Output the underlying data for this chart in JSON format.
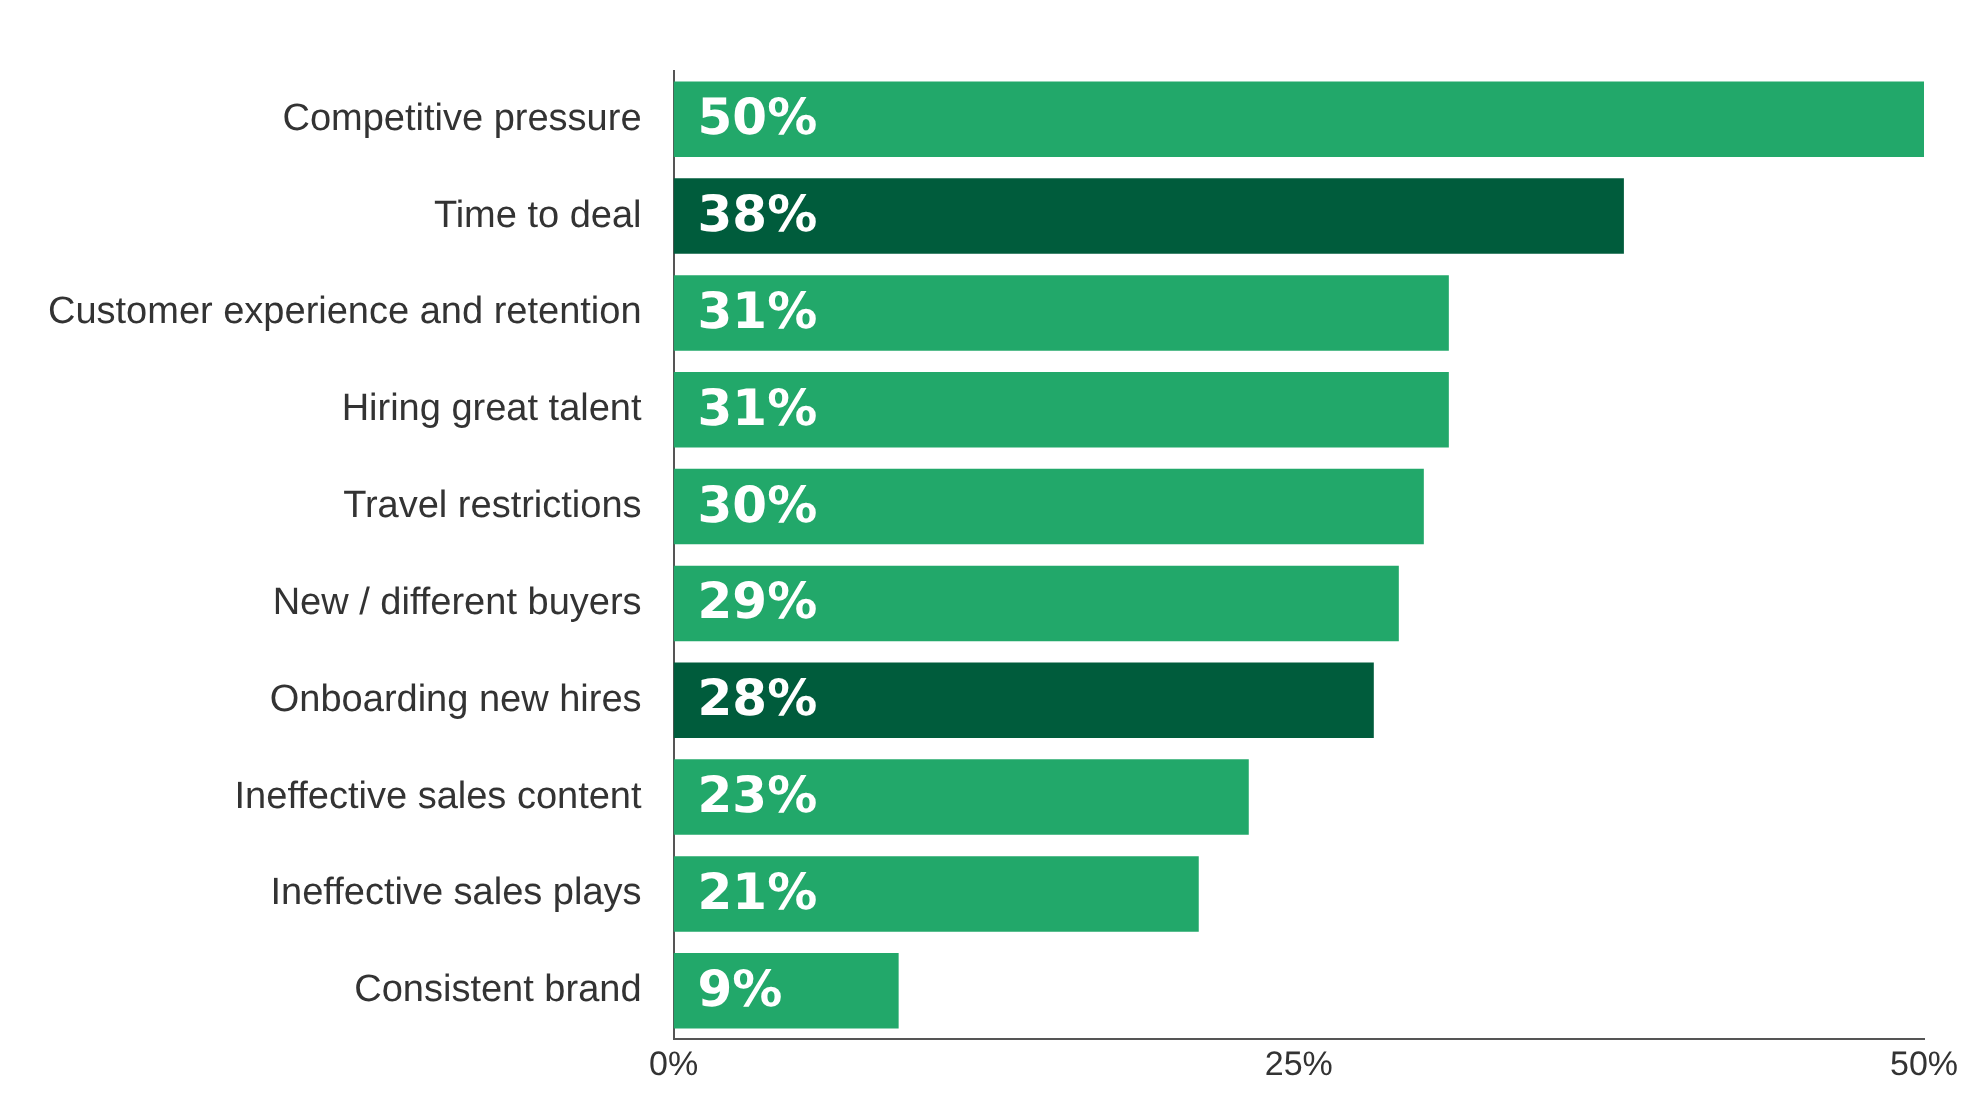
{
  "chart_data": {
    "type": "bar",
    "orientation": "horizontal",
    "categories": [
      "Competitive pressure",
      "Time to deal",
      "Customer experience and retention",
      "Hiring great talent",
      "Travel restrictions",
      "New / different buyers",
      "Onboarding new hires",
      "Ineffective sales content",
      "Ineffective sales plays",
      "Consistent brand"
    ],
    "values": [
      50,
      38,
      31,
      31,
      30,
      29,
      28,
      23,
      21,
      9
    ],
    "value_labels": [
      "50%",
      "38%",
      "31%",
      "31%",
      "30%",
      "29%",
      "28%",
      "23%",
      "21%",
      "9%"
    ],
    "colors": [
      "#22a86a",
      "#005c3c",
      "#22a86a",
      "#22a86a",
      "#22a86a",
      "#22a86a",
      "#005c3c",
      "#22a86a",
      "#22a86a",
      "#22a86a"
    ],
    "xlim": [
      0,
      50
    ],
    "xticks": [
      {
        "value": 0,
        "label": "0%"
      },
      {
        "value": 25,
        "label": "25%"
      },
      {
        "value": 50,
        "label": "50%"
      }
    ],
    "grid": false,
    "legend": false
  }
}
